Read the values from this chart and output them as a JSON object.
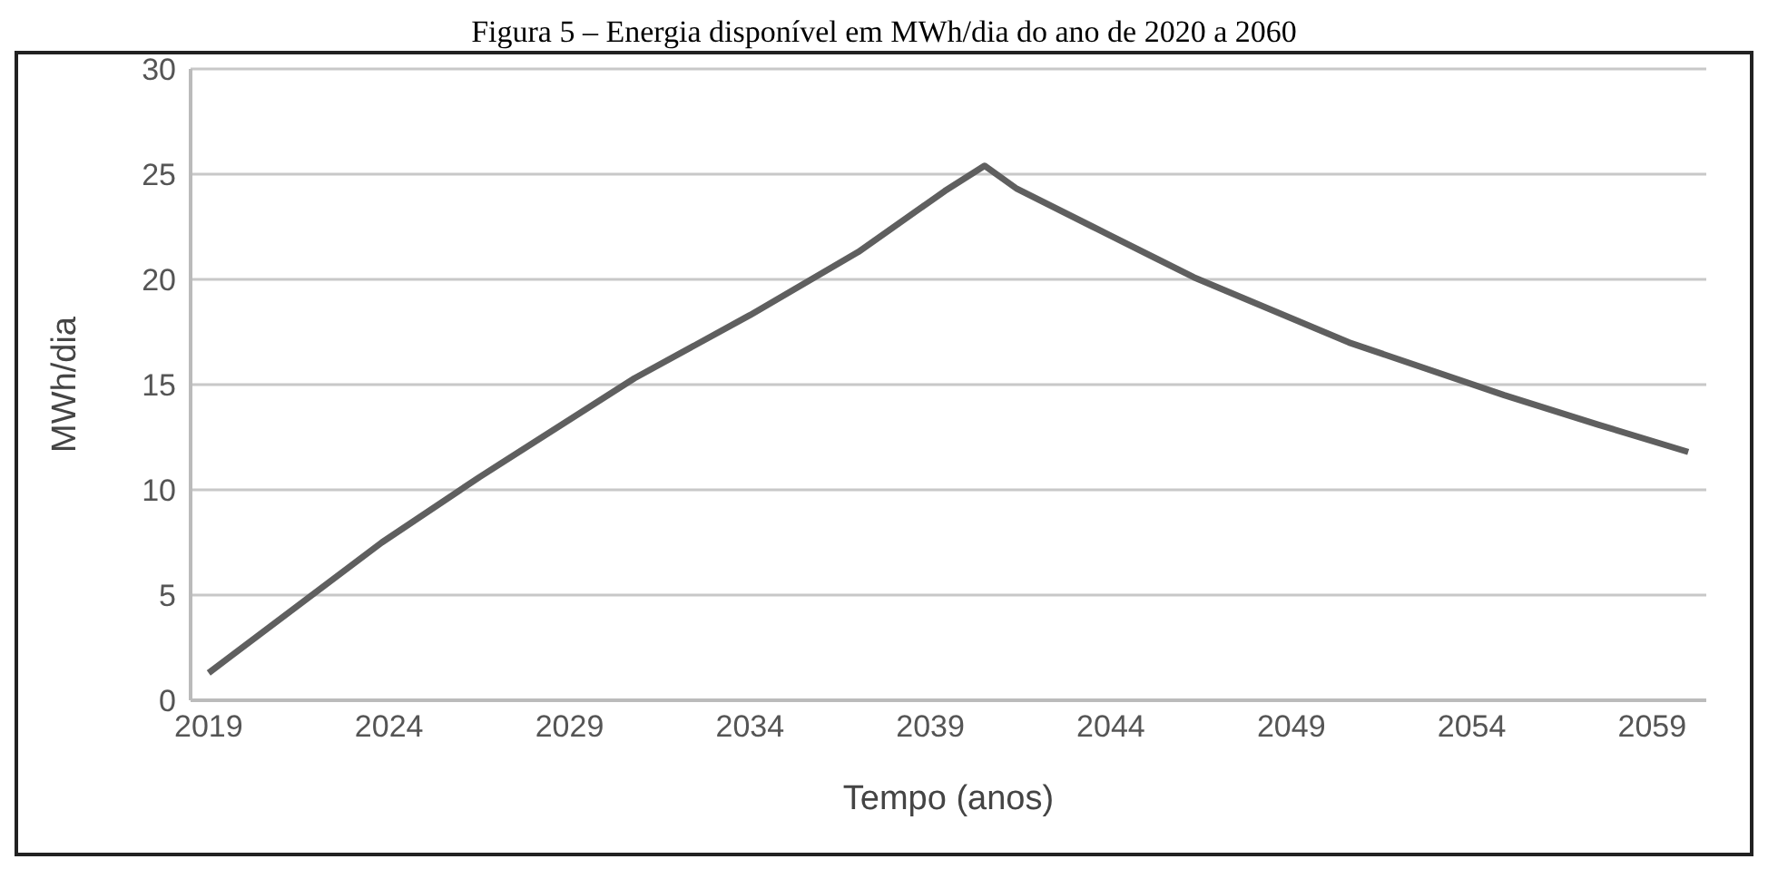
{
  "chart_data": {
    "type": "line",
    "title": "Figura 5 – Energia disponível em MWh/dia do ano de 2020 a 2060",
    "xlabel": "Tempo (anos)",
    "ylabel": "MWh/dia",
    "x": [
      2019,
      2023.8,
      2026.5,
      2030.8,
      2034,
      2037,
      2039.4,
      2040.5,
      2041.4,
      2043.5,
      2046.3,
      2050.6,
      2054.9,
      2057.5,
      2060
    ],
    "series": [
      {
        "color": "#5f5f5f",
        "values": [
          1.3,
          7.5,
          10.6,
          15.3,
          18.3,
          21.3,
          24.2,
          25.4,
          24.3,
          22.5,
          20.1,
          17.0,
          14.5,
          13.1,
          11.8
        ]
      }
    ],
    "xlim": [
      2018.5,
      2060.5
    ],
    "xticks": [
      2019,
      2024,
      2029,
      2034,
      2039,
      2044,
      2049,
      2054,
      2059
    ],
    "ylim": [
      0,
      30
    ],
    "yticks": [
      0,
      5,
      10,
      15,
      20,
      25,
      30
    ],
    "grid": "y",
    "marker": "none",
    "line_style": "solid"
  }
}
